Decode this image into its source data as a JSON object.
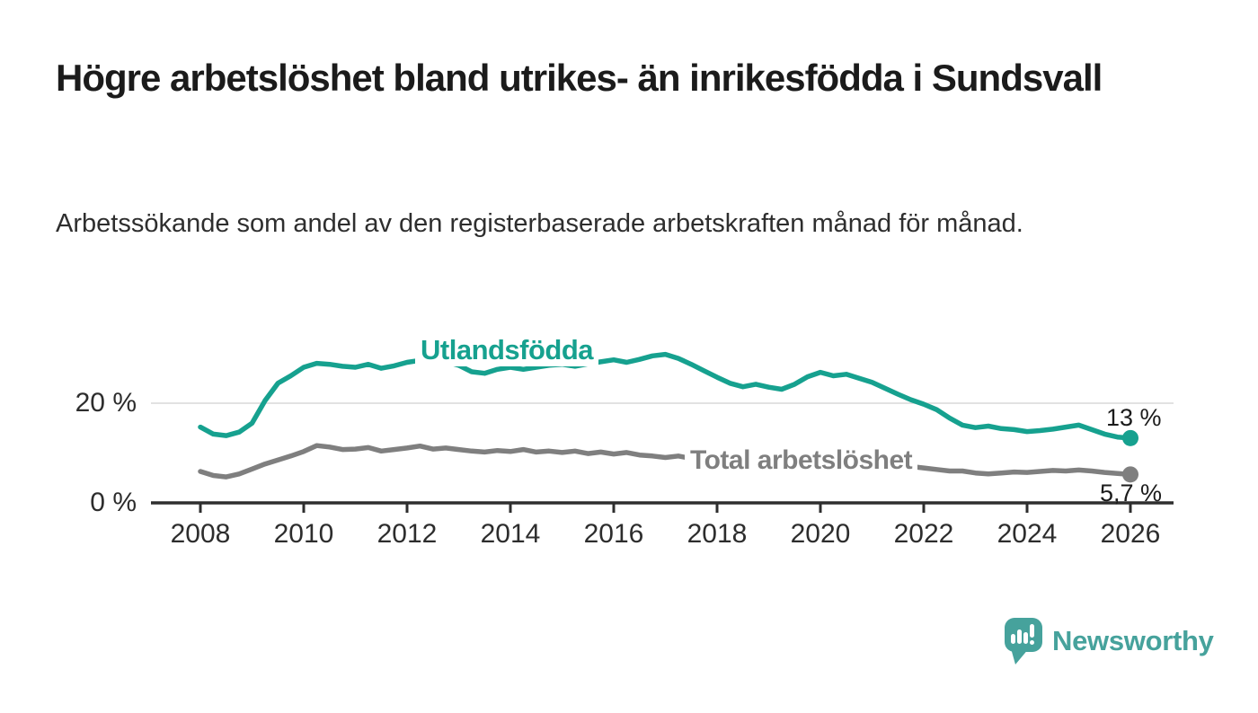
{
  "chart_data": {
    "type": "line",
    "title": "Högre arbetslöshet bland utrikes- än inrikesfödda i Sundsvall",
    "subtitle": "Arbetssökande som andel av den registerbaserade arbetskraften månad för månad.",
    "unit": "%",
    "x_start": 2008,
    "x_end": 2026,
    "x_step": 0.25,
    "x_ticks": [
      2008,
      2010,
      2012,
      2014,
      2016,
      2018,
      2020,
      2022,
      2024,
      2026
    ],
    "y_ticks": [
      {
        "value": 0,
        "label": "0 %"
      },
      {
        "value": 20,
        "label": "20 %"
      }
    ],
    "ylim": [
      0,
      33
    ],
    "grid": "single horizontal gridline at 20 %",
    "legend": "inline labels on lines",
    "series": [
      {
        "name": "Utlandsfödda",
        "inline_label": "Utlandsfödda",
        "color": "#16a18f",
        "end_label": "13 %",
        "end_value": 13,
        "values": [
          15.2,
          13.8,
          13.5,
          14.2,
          16.0,
          20.5,
          24.0,
          25.5,
          27.2,
          28.0,
          27.8,
          27.4,
          27.2,
          27.8,
          27.0,
          27.5,
          28.2,
          28.6,
          28.0,
          28.3,
          27.6,
          26.3,
          26.0,
          26.8,
          27.2,
          26.8,
          27.2,
          27.6,
          27.8,
          27.4,
          27.9,
          28.3,
          28.7,
          28.2,
          28.8,
          29.5,
          29.8,
          29.0,
          27.8,
          26.5,
          25.2,
          24.0,
          23.3,
          23.8,
          23.2,
          22.8,
          23.8,
          25.3,
          26.2,
          25.5,
          25.8,
          25.0,
          24.2,
          23.0,
          21.8,
          20.7,
          19.8,
          18.7,
          17.0,
          15.6,
          15.1,
          15.4,
          14.9,
          14.7,
          14.3,
          14.5,
          14.8,
          15.2,
          15.6,
          14.7,
          13.8,
          13.2,
          13.0
        ]
      },
      {
        "name": "Total arbetslöshet",
        "inline_label": "Total arbetslöshet",
        "color": "#7f7f7f",
        "end_label": "5,7 %",
        "end_value": 5.7,
        "values": [
          6.3,
          5.5,
          5.2,
          5.8,
          6.8,
          7.8,
          8.6,
          9.4,
          10.3,
          11.5,
          11.2,
          10.7,
          10.8,
          11.1,
          10.4,
          10.7,
          11.0,
          11.4,
          10.8,
          11.0,
          10.7,
          10.4,
          10.2,
          10.5,
          10.3,
          10.7,
          10.2,
          10.4,
          10.1,
          10.4,
          9.9,
          10.2,
          9.8,
          10.1,
          9.6,
          9.4,
          9.1,
          9.4,
          8.9,
          8.6,
          8.3,
          8.6,
          8.1,
          8.4,
          8.1,
          7.9,
          8.2,
          8.6,
          9.2,
          9.6,
          9.3,
          8.9,
          8.5,
          8.1,
          7.7,
          7.3,
          7.0,
          6.7,
          6.4,
          6.4,
          6.0,
          5.8,
          6.0,
          6.2,
          6.1,
          6.3,
          6.5,
          6.4,
          6.6,
          6.4,
          6.1,
          5.9,
          5.7
        ]
      }
    ]
  },
  "branding": {
    "logo_text": "Newsworthy",
    "logo_icon": "speech-bubble-bar-chart-icon",
    "brand_color": "#46a29c"
  },
  "colors": {
    "axis": "#2e2e2e",
    "gridline": "#d9d9d9",
    "title_text": "#1b1b1b",
    "body_text": "#2e2e2e"
  }
}
